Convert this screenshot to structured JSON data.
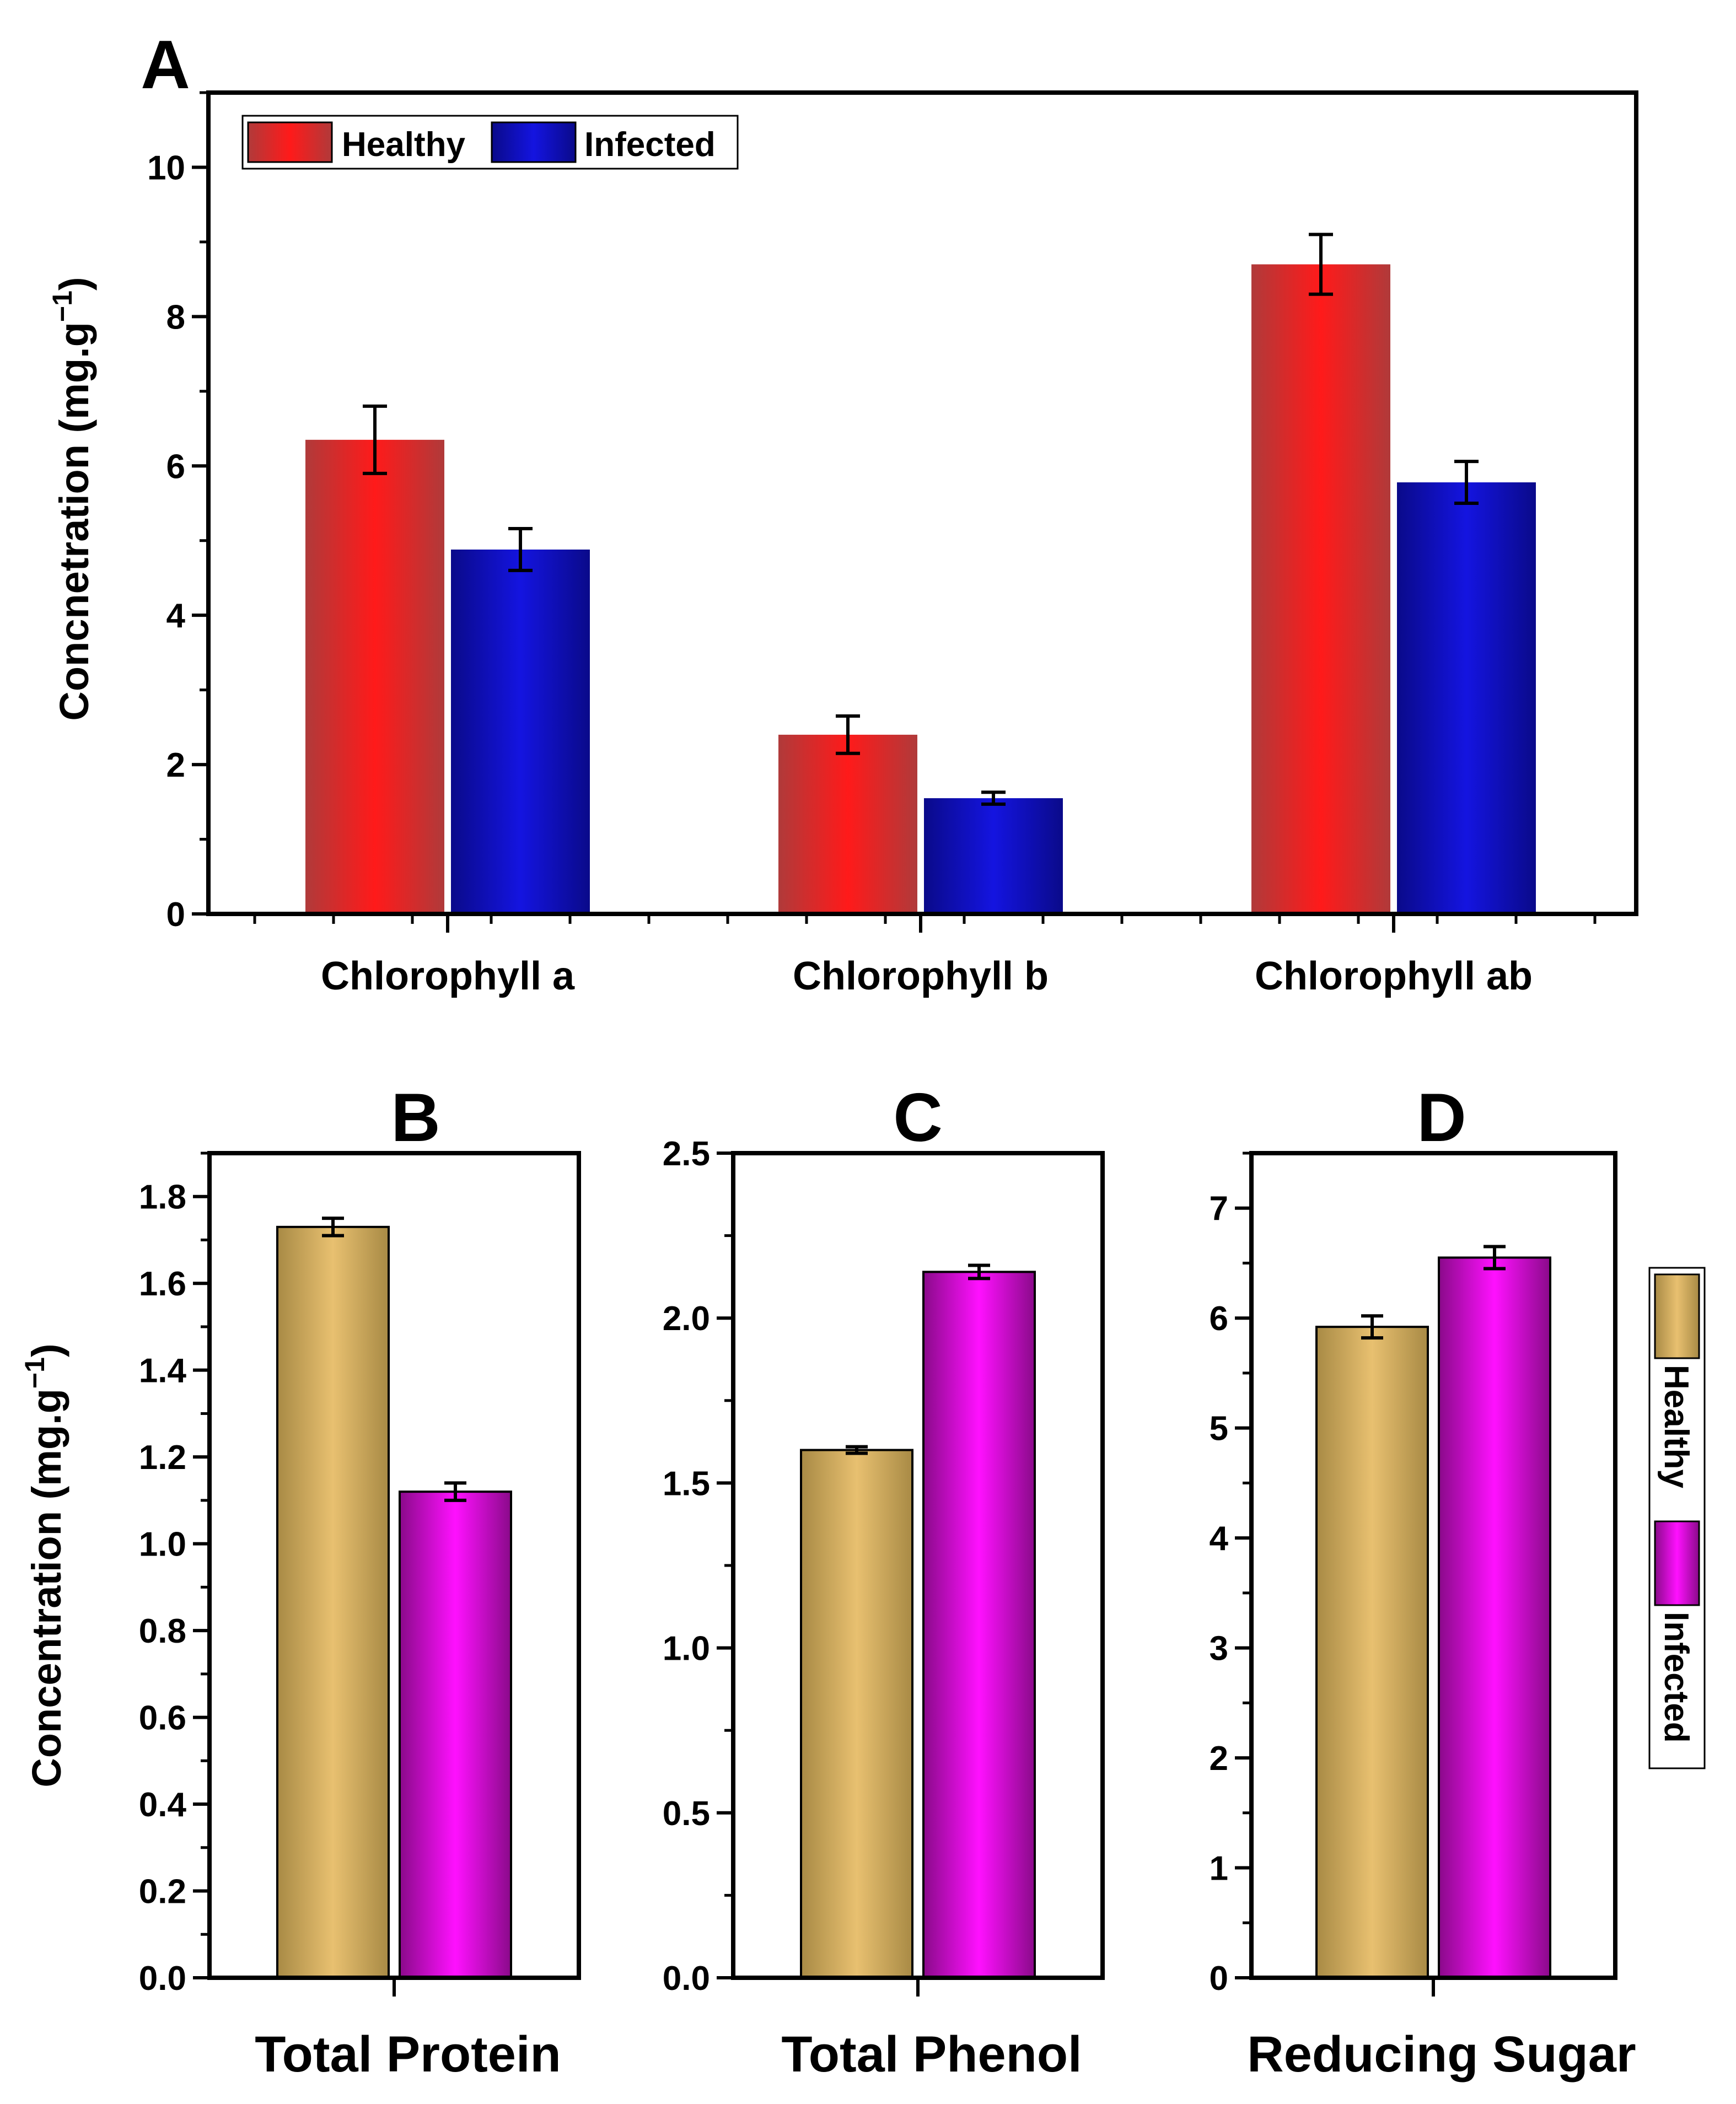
{
  "colors": {
    "healthy_a": "#ff1a1a",
    "healthy_a_dark": "#b03a3a",
    "infected_a": "#1414e0",
    "infected_a_dark": "#0a0a8a",
    "healthy_bcd": "#e8c070",
    "healthy_bcd_dark": "#a88a45",
    "infected_bcd": "#ff10ff",
    "infected_bcd_dark": "#8a0a8a"
  },
  "legend": {
    "healthy": "Healthy",
    "infected": "Infected"
  },
  "chart_data": [
    {
      "id": "A",
      "panel_letter": "A",
      "type": "bar",
      "ylabel_main": "Concnetration (mg.g",
      "ylabel_sup": "−1",
      "ylabel_end": ")",
      "categories": [
        "Chlorophyll a",
        "Chlorophyll b",
        "Chlorophyll ab"
      ],
      "series": [
        {
          "name": "Healthy",
          "values": [
            6.35,
            2.4,
            8.7
          ],
          "errors": [
            0.45,
            0.25,
            0.4
          ]
        },
        {
          "name": "Infected",
          "values": [
            4.88,
            1.55,
            5.78
          ],
          "errors": [
            0.28,
            0.08,
            0.28
          ]
        }
      ],
      "ylim": [
        0,
        11
      ],
      "yticks": [
        "0",
        "2",
        "4",
        "6",
        "8",
        "10"
      ],
      "legend_position": "top-left"
    },
    {
      "id": "B",
      "panel_letter": "B",
      "type": "bar",
      "ylabel_main": "Concentration (mg.g",
      "ylabel_sup": "−1",
      "ylabel_end": ")",
      "category": "Total Protein",
      "series": [
        {
          "name": "Healthy",
          "value": 1.73,
          "error": 0.02
        },
        {
          "name": "Infected",
          "value": 1.12,
          "error": 0.02
        }
      ],
      "ylim": [
        0,
        1.9
      ],
      "yticks": [
        "0.0",
        "0.2",
        "0.4",
        "0.6",
        "0.8",
        "1.0",
        "1.2",
        "1.4",
        "1.6",
        "1.8"
      ]
    },
    {
      "id": "C",
      "panel_letter": "C",
      "type": "bar",
      "category": "Total Phenol",
      "series": [
        {
          "name": "Healthy",
          "value": 1.6,
          "error": 0.01
        },
        {
          "name": "Infected",
          "value": 2.14,
          "error": 0.02
        }
      ],
      "ylim": [
        0,
        2.5
      ],
      "yticks": [
        "0.0",
        "0.5",
        "1.0",
        "1.5",
        "2.0",
        "2.5"
      ]
    },
    {
      "id": "D",
      "panel_letter": "D",
      "type": "bar",
      "category": "Reducing Sugar",
      "series": [
        {
          "name": "Healthy",
          "value": 5.92,
          "error": 0.1
        },
        {
          "name": "Infected",
          "value": 6.55,
          "error": 0.1
        }
      ],
      "ylim": [
        0,
        7.5
      ],
      "yticks": [
        "0",
        "1",
        "2",
        "3",
        "4",
        "5",
        "6",
        "7"
      ],
      "legend_position": "right-vertical"
    }
  ]
}
